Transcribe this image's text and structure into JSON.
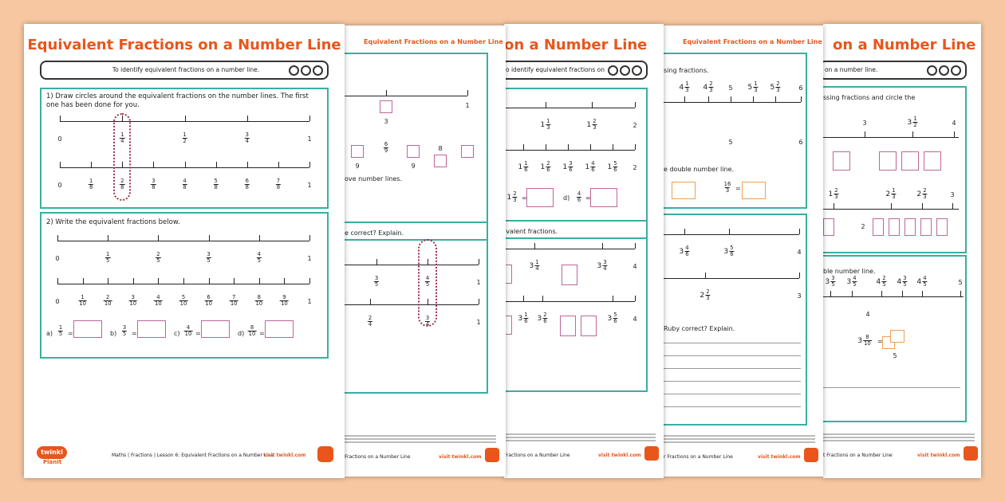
{
  "pages": [
    {
      "title": "Equivalent Fractions on a Number Line",
      "objective": "To identify equivalent fractions on a number line.",
      "q1": {
        "prompt": "1)  Draw circles around the equivalent fractions on the number lines. The first one has been done for you.",
        "line1": [
          "0",
          {
            "n": "1",
            "d": "4"
          },
          {
            "n": "1",
            "d": "2"
          },
          {
            "n": "3",
            "d": "4"
          },
          "1"
        ],
        "line2": [
          "0",
          {
            "n": "1",
            "d": "8"
          },
          {
            "n": "2",
            "d": "8"
          },
          {
            "n": "3",
            "d": "8"
          },
          {
            "n": "4",
            "d": "8"
          },
          {
            "n": "5",
            "d": "8"
          },
          {
            "n": "6",
            "d": "8"
          },
          {
            "n": "7",
            "d": "8"
          },
          "1"
        ]
      },
      "q2": {
        "prompt": "2)  Write the equivalent fractions below.",
        "line1": [
          "0",
          {
            "n": "1",
            "d": "5"
          },
          {
            "n": "2",
            "d": "5"
          },
          {
            "n": "3",
            "d": "5"
          },
          {
            "n": "4",
            "d": "5"
          },
          "1"
        ],
        "line2": [
          "0",
          {
            "n": "1",
            "d": "10"
          },
          {
            "n": "2",
            "d": "10"
          },
          {
            "n": "3",
            "d": "10"
          },
          {
            "n": "4",
            "d": "10"
          },
          {
            "n": "5",
            "d": "10"
          },
          {
            "n": "6",
            "d": "10"
          },
          {
            "n": "7",
            "d": "10"
          },
          {
            "n": "8",
            "d": "10"
          },
          {
            "n": "9",
            "d": "10"
          },
          "1"
        ],
        "equals": "=",
        "answers": [
          {
            "label": "a)",
            "frac": {
              "n": "1",
              "d": "5"
            }
          },
          {
            "label": "b)",
            "frac": {
              "n": "3",
              "d": "5"
            }
          },
          {
            "label": "c)",
            "frac": {
              "n": "4",
              "d": "10"
            }
          },
          {
            "label": "d)",
            "frac": {
              "n": "8",
              "d": "10"
            }
          }
        ]
      },
      "footer": {
        "brand": "twinkl",
        "sub": "PlanIt",
        "text": "Maths | Fractions | Lesson 6: Equivalent Fractions on a Number Line",
        "url": "visit twinkl.com"
      }
    },
    {
      "header": "Equivalent Fractions on a Number Line",
      "texts": [
        "3",
        "1",
        {
          "n": "6",
          "d": "9"
        },
        "9",
        "9",
        "8",
        "ove number lines.",
        "e correct? Explain."
      ],
      "lines": [
        [
          {
            "n": "3",
            "d": "5"
          },
          {
            "n": "4",
            "d": "5"
          },
          "1"
        ],
        [
          {
            "n": "2",
            "d": "4"
          },
          {
            "n": "3",
            "d": "4"
          },
          "1"
        ]
      ],
      "footer": {
        "text": "Fractions on a Number Line",
        "url": "visit twinkl.com"
      }
    },
    {
      "title": "on a Number Line",
      "objective": "o identify equivalent fractions on a number line.",
      "texts": [
        {
          "w": "1",
          "n": "2",
          "d": "3"
        },
        "=",
        "d)",
        {
          "n": "4",
          "d": "6"
        },
        "=",
        "ivalent fractions."
      ],
      "lines": [
        [
          {
            "w": "1",
            "n": "1",
            "d": "3"
          },
          {
            "w": "1",
            "n": "2",
            "d": "3"
          },
          "2"
        ],
        [
          {
            "w": "1",
            "n": "1",
            "d": "6"
          },
          {
            "w": "1",
            "n": "2",
            "d": "6"
          },
          {
            "w": "1",
            "n": "3",
            "d": "6"
          },
          {
            "w": "1",
            "n": "4",
            "d": "6"
          },
          {
            "w": "1",
            "n": "5",
            "d": "6"
          },
          "2"
        ],
        [
          {
            "w": "3",
            "n": "1",
            "d": "4"
          },
          {
            "w": "3",
            "n": "3",
            "d": "4"
          },
          "4"
        ],
        [
          {
            "w": "3",
            "n": "1",
            "d": "6"
          },
          {
            "w": "3",
            "n": "2",
            "d": "6"
          },
          {
            "w": "3",
            "n": "5",
            "d": "6"
          },
          "4"
        ]
      ],
      "footer": {
        "text": "Fractions on a Number Line",
        "url": "visit twinkl.com"
      }
    },
    {
      "header": "Equivalent Fractions on a Number Line",
      "texts": [
        "sing fractions.",
        "5",
        "6",
        "e double number line.",
        {
          "n": "16",
          "d": "3"
        },
        "=",
        "Ruby correct? Explain."
      ],
      "lines": [
        [
          {
            "w": "4",
            "n": "1",
            "d": "3"
          },
          {
            "w": "4",
            "n": "2",
            "d": "3"
          },
          "5",
          {
            "w": "5",
            "n": "1",
            "d": "3"
          },
          {
            "w": "5",
            "n": "2",
            "d": "3"
          },
          "6"
        ],
        [
          {
            "w": "3",
            "n": "4",
            "d": "6"
          },
          {
            "w": "3",
            "n": "5",
            "d": "6"
          },
          "4"
        ],
        [
          {
            "w": "2",
            "n": "2",
            "d": "3"
          },
          "3"
        ]
      ],
      "footer": {
        "text": "r Fractions on a Number Line",
        "url": "visit twinkl.com"
      }
    },
    {
      "title": "on a Number Line",
      "objective": "on a number line.",
      "texts": [
        "ssing fractions and circle the",
        "2",
        "ble number line.",
        "4",
        {
          "w": "3",
          "n": "8",
          "d": "10"
        },
        "=",
        "5"
      ],
      "lines": [
        [
          "3",
          {
            "w": "3",
            "n": "1",
            "d": "2"
          },
          "4"
        ],
        [
          {
            "w": "1",
            "n": "2",
            "d": "3"
          },
          {
            "w": "2",
            "n": "1",
            "d": "3"
          },
          {
            "w": "2",
            "n": "2",
            "d": "3"
          },
          "3"
        ],
        [
          {
            "w": "3",
            "n": "3",
            "d": "5"
          },
          {
            "w": "3",
            "n": "4",
            "d": "5"
          },
          {
            "w": "4",
            "n": "2",
            "d": "5"
          },
          {
            "w": "4",
            "n": "3",
            "d": "5"
          },
          {
            "w": "4",
            "n": "4",
            "d": "5"
          },
          "5"
        ]
      ],
      "footer": {
        "text": "t Fractions on a Number Line",
        "url": "visit twinkl.com"
      }
    }
  ]
}
